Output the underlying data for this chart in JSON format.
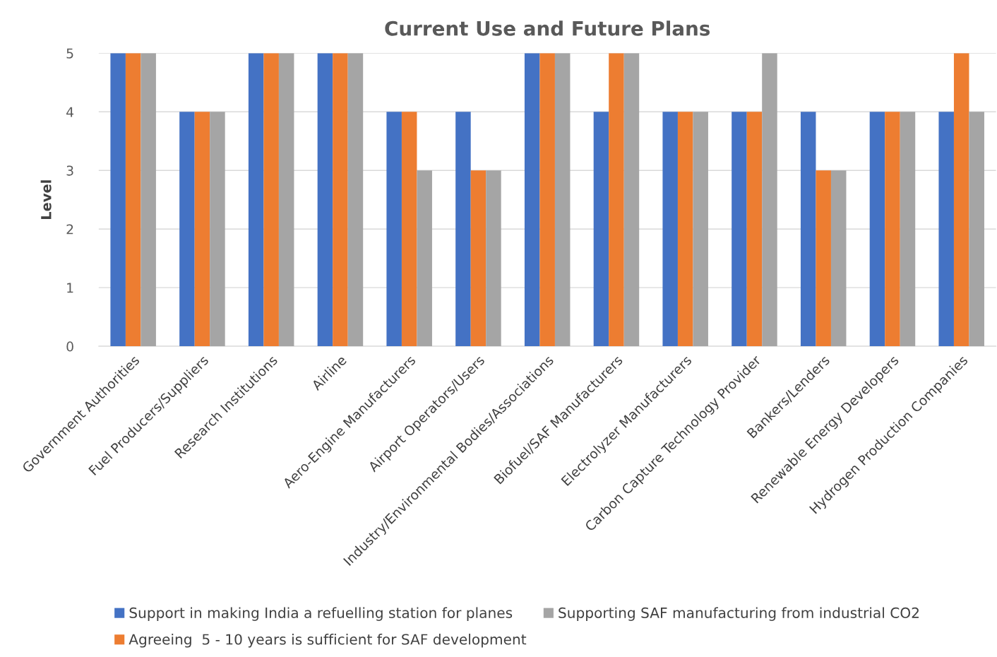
{
  "chart_data": {
    "type": "bar",
    "title": "Current Use and Future Plans",
    "ylabel": "Level",
    "categories": [
      "Government Authorities",
      "Fuel Producers/Suppliers",
      "Research Institutions",
      "Airline",
      "Aero-Engine Manufacturers",
      "Airport Operators/Users",
      "Industry/Environmental Bodies/Associations",
      "Biofuel/SAF Manufacturers",
      "Electrolyzer Manufacturers",
      "Carbon Capture Technology Provider",
      "Bankers/Lenders",
      "Renewable Energy Developers",
      "Hydrogen Production Companies"
    ],
    "series": [
      {
        "name": "Support in making India a refuelling station for planes",
        "color": "#4472c4",
        "values": [
          5,
          4,
          5,
          5,
          4,
          4,
          5,
          4,
          4,
          4,
          4,
          4,
          4
        ]
      },
      {
        "name": "Agreeing  5 - 10 years is sufficient for SAF development",
        "color": "#ed7d31",
        "values": [
          5,
          4,
          5,
          5,
          4,
          3,
          5,
          5,
          4,
          4,
          3,
          4,
          5
        ]
      },
      {
        "name": "Supporting SAF manufacturing from industrial CO2",
        "color": "#a5a5a5",
        "values": [
          5,
          4,
          5,
          5,
          3,
          3,
          5,
          5,
          4,
          5,
          3,
          4,
          4
        ]
      }
    ],
    "ylim": [
      0,
      5
    ],
    "yticks": [
      0,
      1,
      2,
      3,
      4,
      5
    ],
    "grid": "y",
    "legend": "bottom"
  }
}
